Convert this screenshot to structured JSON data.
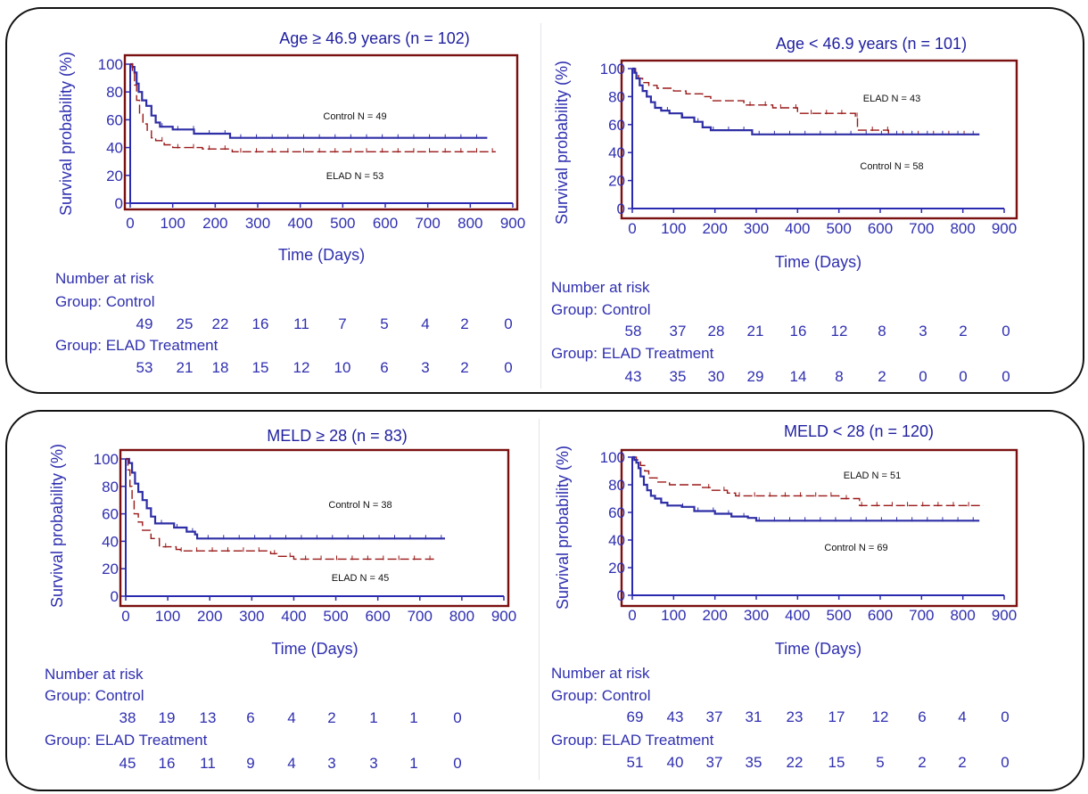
{
  "labels": {
    "risk_heading": "Number at risk",
    "group_control": "Group: Control",
    "group_elad": "Group: ELAD Treatment"
  },
  "colors": {
    "control": "#2e2ea6",
    "elad": "#9a1818",
    "frame": "#7a1010",
    "text": "#2f2fb0"
  },
  "chart_data": [
    {
      "type": "line",
      "title": "Age ≥ 46.9 years (n = 102)",
      "xlabel": "Time (Days)",
      "ylabel": "Survival probability (%)",
      "xlim": [
        0,
        900
      ],
      "ylim": [
        0,
        100
      ],
      "x_ticks": [
        0,
        100,
        200,
        300,
        400,
        500,
        600,
        700,
        800,
        900
      ],
      "y_ticks": [
        0,
        20,
        40,
        60,
        80,
        100
      ],
      "series": [
        {
          "name": "Control N = 49",
          "style": "solid",
          "points": [
            [
              0,
              100
            ],
            [
              5,
              98
            ],
            [
              10,
              94
            ],
            [
              15,
              86
            ],
            [
              20,
              80
            ],
            [
              28,
              74
            ],
            [
              38,
              70
            ],
            [
              50,
              63
            ],
            [
              60,
              58
            ],
            [
              70,
              55
            ],
            [
              95,
              55
            ],
            [
              100,
              53
            ],
            [
              140,
              53
            ],
            [
              150,
              50
            ],
            [
              230,
              50
            ],
            [
              235,
              47
            ],
            [
              840,
              47
            ]
          ]
        },
        {
          "name": "ELAD N = 53",
          "style": "dashed",
          "points": [
            [
              0,
              100
            ],
            [
              5,
              95
            ],
            [
              10,
              85
            ],
            [
              15,
              74
            ],
            [
              22,
              64
            ],
            [
              30,
              57
            ],
            [
              40,
              52
            ],
            [
              50,
              47
            ],
            [
              60,
              45
            ],
            [
              80,
              42
            ],
            [
              100,
              40
            ],
            [
              160,
              40
            ],
            [
              170,
              39
            ],
            [
              230,
              39
            ],
            [
              240,
              37
            ],
            [
              860,
              37
            ]
          ]
        }
      ],
      "risk_table": {
        "Control": [
          49,
          25,
          22,
          16,
          11,
          7,
          5,
          4,
          2,
          0
        ],
        "ELAD Treatment": [
          53,
          21,
          18,
          15,
          12,
          10,
          6,
          3,
          2,
          0
        ]
      }
    },
    {
      "type": "line",
      "title": "Age < 46.9 years (n = 101)",
      "xlabel": "Time (Days)",
      "ylabel": "Survival probability (%)",
      "xlim": [
        0,
        900
      ],
      "ylim": [
        0,
        100
      ],
      "x_ticks": [
        0,
        100,
        200,
        300,
        400,
        500,
        600,
        700,
        800,
        900
      ],
      "y_ticks": [
        0,
        20,
        40,
        60,
        80,
        100
      ],
      "series": [
        {
          "name": "ELAD N = 43",
          "style": "dashed",
          "points": [
            [
              0,
              100
            ],
            [
              8,
              97
            ],
            [
              15,
              93
            ],
            [
              25,
              90
            ],
            [
              40,
              88
            ],
            [
              60,
              86
            ],
            [
              100,
              84
            ],
            [
              130,
              82
            ],
            [
              170,
              80
            ],
            [
              190,
              77
            ],
            [
              250,
              77
            ],
            [
              270,
              74
            ],
            [
              330,
              74
            ],
            [
              340,
              72
            ],
            [
              390,
              72
            ],
            [
              400,
              68
            ],
            [
              520,
              68
            ],
            [
              540,
              66
            ],
            [
              545,
              56
            ],
            [
              600,
              56
            ],
            [
              620,
              53
            ],
            [
              840,
              53
            ]
          ]
        },
        {
          "name": "Control N = 58",
          "style": "solid",
          "points": [
            [
              0,
              100
            ],
            [
              5,
              97
            ],
            [
              10,
              93
            ],
            [
              18,
              88
            ],
            [
              25,
              84
            ],
            [
              35,
              80
            ],
            [
              45,
              76
            ],
            [
              55,
              72
            ],
            [
              70,
              70
            ],
            [
              90,
              68
            ],
            [
              120,
              65
            ],
            [
              150,
              62
            ],
            [
              170,
              58
            ],
            [
              190,
              56
            ],
            [
              270,
              56
            ],
            [
              290,
              53
            ],
            [
              840,
              53
            ]
          ]
        }
      ],
      "risk_table": {
        "Control": [
          58,
          37,
          28,
          21,
          16,
          12,
          8,
          3,
          2,
          0
        ],
        "ELAD Treatment": [
          43,
          35,
          30,
          29,
          14,
          8,
          2,
          0,
          0,
          0
        ]
      }
    },
    {
      "type": "line",
      "title": "MELD ≥ 28  (n = 83)",
      "xlabel": "Time (Days)",
      "ylabel": "Survival probability (%)",
      "xlim": [
        0,
        900
      ],
      "ylim": [
        0,
        100
      ],
      "x_ticks": [
        0,
        100,
        200,
        300,
        400,
        500,
        600,
        700,
        800,
        900
      ],
      "y_ticks": [
        0,
        20,
        40,
        60,
        80,
        100
      ],
      "series": [
        {
          "name": "Control N = 38",
          "style": "solid",
          "points": [
            [
              0,
              100
            ],
            [
              8,
              97
            ],
            [
              15,
              90
            ],
            [
              22,
              82
            ],
            [
              30,
              76
            ],
            [
              40,
              70
            ],
            [
              50,
              64
            ],
            [
              60,
              58
            ],
            [
              70,
              53
            ],
            [
              110,
              53
            ],
            [
              115,
              50
            ],
            [
              140,
              50
            ],
            [
              145,
              47
            ],
            [
              160,
              47
            ],
            [
              165,
              45
            ],
            [
              170,
              42
            ],
            [
              760,
              42
            ]
          ]
        },
        {
          "name": "ELAD N = 45",
          "style": "dashed",
          "points": [
            [
              0,
              100
            ],
            [
              5,
              92
            ],
            [
              10,
              80
            ],
            [
              15,
              70
            ],
            [
              20,
              60
            ],
            [
              30,
              54
            ],
            [
              40,
              48
            ],
            [
              60,
              42
            ],
            [
              80,
              36
            ],
            [
              120,
              34
            ],
            [
              130,
              33
            ],
            [
              330,
              33
            ],
            [
              345,
              31
            ],
            [
              360,
              29
            ],
            [
              390,
              29
            ],
            [
              400,
              27
            ],
            [
              740,
              27
            ]
          ]
        }
      ],
      "risk_table": {
        "Control": [
          38,
          19,
          13,
          6,
          4,
          2,
          1,
          1,
          0
        ],
        "ELAD Treatment": [
          45,
          16,
          11,
          9,
          4,
          3,
          3,
          1,
          0
        ]
      }
    },
    {
      "type": "line",
      "title": "MELD < 28  (n = 120)",
      "xlabel": "Time (Days)",
      "ylabel": "Survival probability (%)",
      "xlim": [
        0,
        900
      ],
      "ylim": [
        0,
        100
      ],
      "x_ticks": [
        0,
        100,
        200,
        300,
        400,
        500,
        600,
        700,
        800,
        900
      ],
      "y_ticks": [
        0,
        20,
        40,
        60,
        80,
        100
      ],
      "series": [
        {
          "name": "ELAD N = 51",
          "style": "dashed",
          "points": [
            [
              0,
              100
            ],
            [
              10,
              98
            ],
            [
              20,
              94
            ],
            [
              30,
              90
            ],
            [
              40,
              85
            ],
            [
              60,
              82
            ],
            [
              90,
              80
            ],
            [
              150,
              80
            ],
            [
              170,
              78
            ],
            [
              190,
              76
            ],
            [
              230,
              74
            ],
            [
              250,
              72
            ],
            [
              480,
              72
            ],
            [
              500,
              70
            ],
            [
              540,
              70
            ],
            [
              550,
              65
            ],
            [
              850,
              65
            ]
          ]
        },
        {
          "name": "Control N = 69",
          "style": "solid",
          "points": [
            [
              0,
              100
            ],
            [
              5,
              98
            ],
            [
              10,
              96
            ],
            [
              15,
              92
            ],
            [
              20,
              86
            ],
            [
              28,
              80
            ],
            [
              36,
              76
            ],
            [
              45,
              72
            ],
            [
              55,
              70
            ],
            [
              70,
              67
            ],
            [
              85,
              65
            ],
            [
              120,
              64
            ],
            [
              150,
              61
            ],
            [
              200,
              59
            ],
            [
              240,
              57
            ],
            [
              280,
              56
            ],
            [
              300,
              54
            ],
            [
              840,
              54
            ]
          ]
        }
      ],
      "risk_table": {
        "Control": [
          69,
          43,
          37,
          31,
          23,
          17,
          12,
          6,
          4,
          0
        ],
        "ELAD Treatment": [
          51,
          40,
          37,
          35,
          22,
          15,
          5,
          2,
          2,
          0
        ]
      }
    }
  ]
}
